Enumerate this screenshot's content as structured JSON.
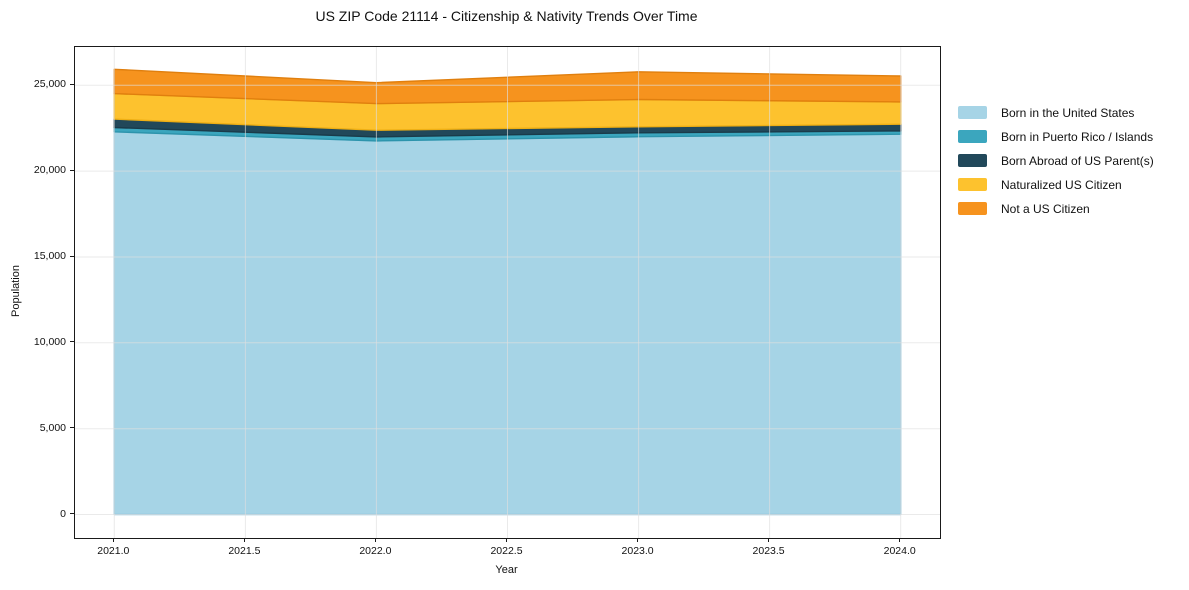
{
  "chart_data": {
    "type": "area",
    "stacked": true,
    "title": "US ZIP Code 21114 - Citizenship & Nativity Trends Over Time",
    "xlabel": "Year",
    "ylabel": "Population",
    "x": [
      2021,
      2022,
      2023,
      2024
    ],
    "series": [
      {
        "name": "Born in the United States",
        "color": "#A6D4E6",
        "edge": "#8CC4DC",
        "values": [
          22290,
          21760,
          22000,
          22150
        ]
      },
      {
        "name": "Born in Puerto Rico / Islands",
        "color": "#3BA6BE",
        "edge": "#2D94AC",
        "values": [
          250,
          230,
          230,
          190
        ]
      },
      {
        "name": "Born Abroad of US Parent(s)",
        "color": "#21485A",
        "edge": "#1A3B4A",
        "values": [
          490,
          390,
          350,
          390
        ]
      },
      {
        "name": "Naturalized US Citizen",
        "color": "#FDC22E",
        "edge": "#EFAF14",
        "values": [
          1480,
          1550,
          1590,
          1300
        ]
      },
      {
        "name": "Not a US Citizen",
        "color": "#F6931E",
        "edge": "#E07F0E",
        "values": [
          1420,
          1220,
          1610,
          1510
        ]
      }
    ],
    "xlim": [
      2020.85,
      2024.15
    ],
    "ylim": [
      -1366,
      27226
    ],
    "xticks": {
      "values": [
        2021.0,
        2021.5,
        2022.0,
        2022.5,
        2023.0,
        2023.5,
        2024.0
      ],
      "labels": [
        "2021.0",
        "2021.5",
        "2022.0",
        "2022.5",
        "2023.0",
        "2023.5",
        "2024.0"
      ]
    },
    "yticks": {
      "values": [
        0,
        5000,
        10000,
        15000,
        20000,
        25000
      ],
      "labels": [
        "0",
        "5,000",
        "10,000",
        "15,000",
        "20,000",
        "25,000"
      ]
    },
    "grid": true,
    "grid_color": "#dedede",
    "grid_opacity": 0.65,
    "legend_position": "right-outside",
    "background": "#ffffff",
    "spine_color": "#1a1a1a"
  }
}
